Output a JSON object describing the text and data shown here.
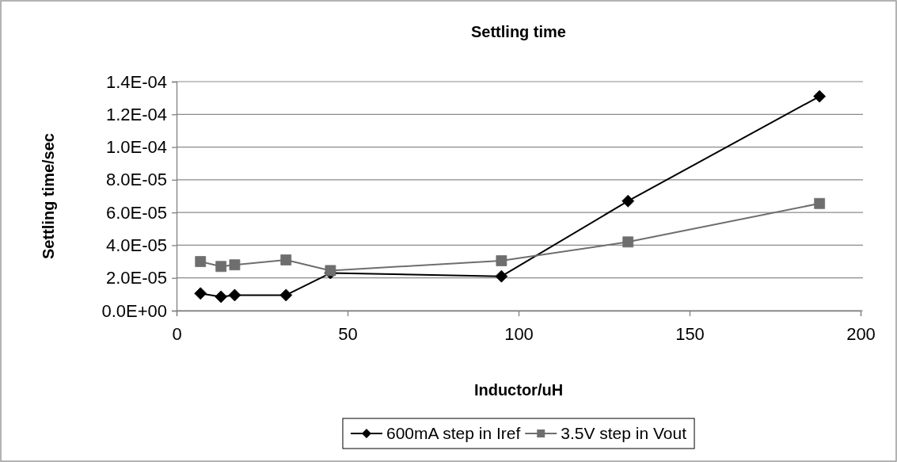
{
  "chart_data": {
    "type": "line",
    "title": "Settling time",
    "xlabel": "Inductor/uH",
    "ylabel": "Settling time/sec",
    "xlim": [
      0,
      200
    ],
    "xticks": [
      0,
      50,
      100,
      150,
      200
    ],
    "ylim": [
      0,
      0.00014
    ],
    "yticks": [
      {
        "value": 0,
        "label": "0.0E+00"
      },
      {
        "value": 2e-05,
        "label": "2.0E-05"
      },
      {
        "value": 4e-05,
        "label": "4.0E-05"
      },
      {
        "value": 6e-05,
        "label": "6.0E-05"
      },
      {
        "value": 8e-05,
        "label": "8.0E-05"
      },
      {
        "value": 0.0001,
        "label": "1.0E-04"
      },
      {
        "value": 0.00012,
        "label": "1.2E-04"
      },
      {
        "value": 0.00014,
        "label": "1.4E-04"
      }
    ],
    "grid": "y",
    "legend": "bottom",
    "x": [
      7,
      13,
      17,
      32,
      45,
      95,
      132,
      188
    ],
    "series": [
      {
        "name": "600mA step in Iref",
        "color": "#000000",
        "marker": "diamond",
        "values": [
          1.05e-05,
          8.5e-06,
          9.5e-06,
          9.5e-06,
          2.3e-05,
          2.1e-05,
          6.7e-05,
          0.000131
        ]
      },
      {
        "name": "3.5V step in Vout",
        "color": "#6e6e6e",
        "marker": "square",
        "values": [
          3e-05,
          2.7e-05,
          2.8e-05,
          3.1e-05,
          2.45e-05,
          3.05e-05,
          4.2e-05,
          6.55e-05
        ]
      }
    ]
  }
}
